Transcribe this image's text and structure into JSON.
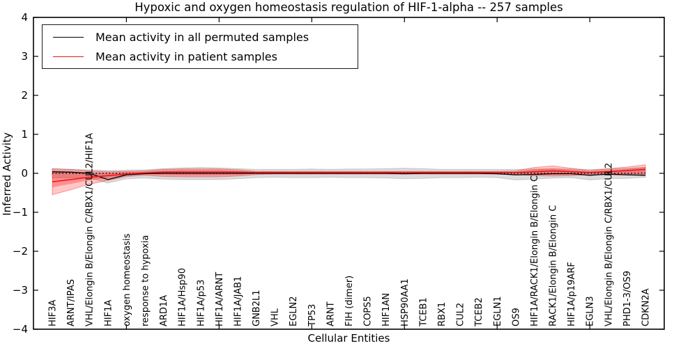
{
  "figure_title": "Hypoxic and oxygen homeostasis regulation of HIF-1-alpha -- 257 samples",
  "chart_data": {
    "type": "line",
    "title": "Hypoxic and oxygen homeostasis regulation of HIF-1-alpha -- 257 samples",
    "sample_count": 257,
    "xlabel": "Cellular Entities",
    "ylabel": "Inferred Activity",
    "ylim": [
      -4,
      4
    ],
    "grid": false,
    "yticks": [
      {
        "v": 4,
        "label": "4"
      },
      {
        "v": 3,
        "label": "3"
      },
      {
        "v": 2,
        "label": "2"
      },
      {
        "v": 1,
        "label": "1"
      },
      {
        "v": 0,
        "label": "0"
      },
      {
        "v": -1,
        "label": "−1"
      },
      {
        "v": -2,
        "label": "−2"
      },
      {
        "v": -3,
        "label": "−3"
      },
      {
        "v": -4,
        "label": "−4"
      }
    ],
    "x_major_tick_every": 5,
    "categories": [
      "HIF3A",
      "ARNT/IPAS",
      "VHL/Elongin B/Elongin C/RBX1/CUL2/HIF1A",
      "HIF1A",
      "oxygen homeostasis",
      "response to hypoxia",
      "ARD1A",
      "HIF1A/Hsp90",
      "HIF1A/p53",
      "HIF1A/ARNT",
      "HIF1A/JAB1",
      "GNB2L1",
      "VHL",
      "EGLN2",
      "TP53",
      "ARNT",
      "FIH (dimer)",
      "COPS5",
      "HIF1AN",
      "HSP90AA1",
      "TCEB1",
      "RBX1",
      "CUL2",
      "TCEB2",
      "EGLN1",
      "OS9",
      "HIF1A/RACK1/Elongin B/Elongin C",
      "RACK1/Elongin B/Elongin C",
      "HIF1A/p19ARF",
      "EGLN3",
      "VHL/Elongin B/Elongin C/RBX1/CUL2",
      "PHD1-3/OS9",
      "CDKN2A"
    ],
    "series": [
      {
        "name": "Mean activity in all permuted samples",
        "color": "#000000",
        "width": 1.3,
        "values": [
          0.04,
          0.03,
          0.0,
          -0.16,
          -0.04,
          -0.01,
          0.0,
          0.0,
          0.0,
          0.0,
          0.0,
          0.0,
          0.0,
          0.0,
          0.0,
          0.0,
          0.0,
          0.0,
          0.0,
          -0.01,
          0.0,
          0.0,
          0.0,
          0.0,
          -0.01,
          -0.04,
          -0.03,
          -0.01,
          -0.01,
          -0.05,
          -0.02,
          -0.04,
          -0.05
        ]
      },
      {
        "name": "Mean activity in patient samples",
        "color": "#ee1111",
        "width": 1.5,
        "values": [
          -0.22,
          -0.16,
          -0.1,
          -0.06,
          -0.02,
          0.01,
          0.03,
          0.03,
          0.03,
          0.03,
          0.03,
          0.02,
          0.02,
          0.02,
          0.02,
          0.02,
          0.02,
          0.02,
          0.02,
          0.02,
          0.02,
          0.02,
          0.02,
          0.02,
          0.02,
          0.02,
          0.04,
          0.06,
          0.04,
          0.02,
          0.04,
          0.07,
          0.1
        ]
      }
    ],
    "bands": [
      {
        "name": "permuted-range",
        "color": "rgba(130,130,130,0.28)",
        "edge": "rgba(90,90,90,0.25)",
        "lo": [
          -0.12,
          -0.11,
          -0.12,
          -0.25,
          -0.14,
          -0.12,
          -0.15,
          -0.16,
          -0.16,
          -0.16,
          -0.14,
          -0.11,
          -0.1,
          -0.11,
          -0.11,
          -0.1,
          -0.11,
          -0.11,
          -0.12,
          -0.14,
          -0.13,
          -0.11,
          -0.11,
          -0.1,
          -0.11,
          -0.17,
          -0.15,
          -0.12,
          -0.11,
          -0.17,
          -0.14,
          -0.13,
          -0.1
        ],
        "hi": [
          0.11,
          0.1,
          0.09,
          0.07,
          0.08,
          0.09,
          0.12,
          0.14,
          0.15,
          0.14,
          0.12,
          0.1,
          0.1,
          0.1,
          0.11,
          0.1,
          0.11,
          0.11,
          0.12,
          0.13,
          0.12,
          0.1,
          0.1,
          0.1,
          0.1,
          0.1,
          0.11,
          0.11,
          0.11,
          0.1,
          0.11,
          0.13,
          0.15
        ]
      },
      {
        "name": "patient-range-outer",
        "color": "rgba(255,0,0,0.22)",
        "edge": "rgba(230,0,0,0.35)",
        "lo": [
          -0.55,
          -0.42,
          -0.28,
          -0.18,
          -0.08,
          -0.05,
          -0.08,
          -0.09,
          -0.09,
          -0.09,
          -0.07,
          -0.03,
          -0.02,
          -0.02,
          -0.02,
          -0.02,
          -0.02,
          -0.02,
          -0.02,
          -0.02,
          -0.02,
          -0.02,
          -0.02,
          -0.02,
          -0.02,
          -0.03,
          -0.06,
          -0.07,
          -0.06,
          -0.03,
          -0.04,
          -0.04,
          -0.04
        ],
        "hi": [
          0.12,
          0.1,
          0.06,
          0.04,
          0.05,
          0.06,
          0.1,
          0.11,
          0.11,
          0.11,
          0.09,
          0.05,
          0.05,
          0.05,
          0.05,
          0.05,
          0.05,
          0.05,
          0.05,
          0.05,
          0.05,
          0.05,
          0.05,
          0.05,
          0.05,
          0.06,
          0.15,
          0.19,
          0.13,
          0.07,
          0.12,
          0.16,
          0.22
        ],
        "legend": false
      },
      {
        "name": "patient-range-inner",
        "color": "rgba(255,0,0,0.28)",
        "edge": "none",
        "lo": [
          -0.36,
          -0.27,
          -0.18,
          -0.12,
          -0.05,
          -0.02,
          -0.04,
          -0.05,
          -0.05,
          -0.05,
          -0.04,
          -0.01,
          -0.01,
          -0.01,
          -0.01,
          -0.01,
          -0.01,
          -0.01,
          -0.01,
          -0.01,
          -0.01,
          -0.01,
          -0.01,
          -0.01,
          -0.01,
          -0.01,
          -0.03,
          -0.04,
          -0.03,
          -0.01,
          -0.02,
          -0.02,
          -0.01
        ],
        "hi": [
          0.06,
          0.04,
          0.02,
          0.01,
          0.03,
          0.04,
          0.07,
          0.08,
          0.08,
          0.08,
          0.06,
          0.04,
          0.04,
          0.04,
          0.04,
          0.04,
          0.04,
          0.04,
          0.04,
          0.04,
          0.04,
          0.04,
          0.04,
          0.04,
          0.04,
          0.04,
          0.1,
          0.13,
          0.09,
          0.05,
          0.08,
          0.11,
          0.16
        ]
      }
    ],
    "zero_line": {
      "style": "dotted",
      "color": "#000000"
    },
    "legend": {
      "position": "upper-left",
      "entries": [
        {
          "label": "Mean activity in all permuted samples",
          "color": "#000000"
        },
        {
          "label": "Mean activity in patient samples",
          "color": "#ee1111"
        }
      ]
    }
  }
}
